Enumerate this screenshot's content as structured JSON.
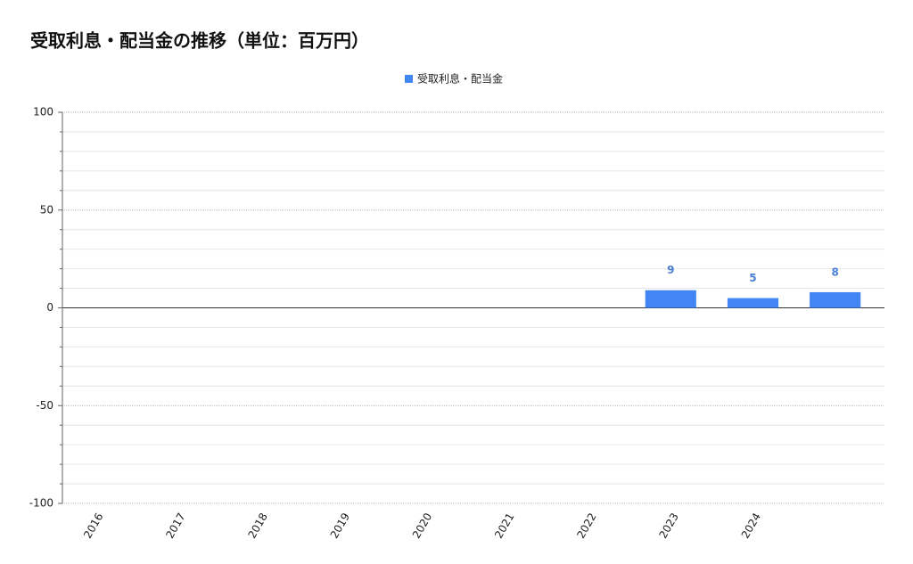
{
  "chart_data": {
    "type": "bar",
    "title": "受取利息・配当金の推移（単位：百万円）",
    "categories": [
      "2016",
      "2017",
      "2018",
      "2019",
      "2020",
      "2021",
      "2022",
      "2023",
      "2024",
      null
    ],
    "series": [
      {
        "name": "受取利息・配当金",
        "color": "#4285f4",
        "values": [
          null,
          null,
          null,
          null,
          null,
          null,
          null,
          9,
          5,
          8
        ]
      }
    ],
    "ylim": [
      -100,
      100
    ],
    "yticks": [
      -100,
      -50,
      0,
      50,
      100
    ],
    "grid": true,
    "legend": "top"
  }
}
